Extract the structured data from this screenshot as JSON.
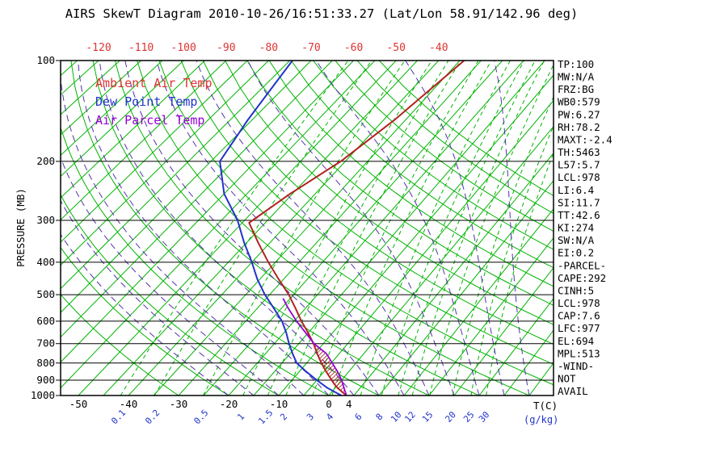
{
  "title": "AIRS SkewT Diagram 2010-10-26/16:51:33.27 (Lat/Lon 58.91/142.96 deg)",
  "legend": [
    {
      "label": "Ambient Air Temp",
      "color": "#e03333"
    },
    {
      "label": "Dew Point Temp",
      "color": "#2233cc"
    },
    {
      "label": "Air Parcel Temp",
      "color": "#9400d3"
    }
  ],
  "axes": {
    "pressure_label": "PRESSURE (MB)",
    "temp_label": "T(C)",
    "mixing_label": "(g/kg)"
  },
  "stats": [
    "TP:100",
    "MW:N/A",
    "FRZ:BG",
    "WB0:579",
    "PW:6.27",
    "RH:78.2",
    "MAXT:-2.4",
    "TH:5463",
    "L57:5.7",
    "LCL:978",
    "LI:6.4",
    "SI:11.7",
    "TT:42.6",
    "KI:274",
    "SW:N/A",
    "EI:0.2",
    "-PARCEL-",
    "CAPE:292",
    "CINH:5",
    "LCL:978",
    "CAP:7.6",
    "LFC:977",
    "EL:694",
    "MPL:513",
    "-WIND-",
    "NOT",
    "AVAIL"
  ],
  "colors": {
    "background_line_green": "#00b400",
    "moist_adiabat_violet": "#5533aa",
    "ambient_temp_red": "#b22222",
    "dew_point_blue": "#2233cc",
    "parcel_violet": "#9400d3",
    "top_axis_label_red": "#e03333",
    "axis_black": "#000000"
  },
  "chart_data": {
    "type": "line",
    "title": "AIRS SkewT Diagram 2010-10-26/16:51:33.27 (Lat/Lon 58.91/142.96 deg)",
    "x_axis": {
      "label": "T(C)",
      "top_ticks": [
        -120,
        -110,
        -100,
        -90,
        -80,
        -70,
        -60,
        -50,
        -40
      ],
      "bottom_ticks": [
        -50,
        -40,
        -30,
        -20,
        -10,
        0,
        4
      ]
    },
    "y_axis": {
      "label": "PRESSURE (MB)",
      "scale": "log",
      "range": [
        100,
        1000
      ],
      "ticks": [
        100,
        200,
        300,
        400,
        500,
        600,
        700,
        800,
        900,
        1000
      ]
    },
    "mixing_ratio_lines_gkg": [
      0.1,
      0.2,
      0.5,
      1,
      1.5,
      2,
      3,
      4,
      6,
      8,
      10,
      12,
      15,
      20,
      25,
      30
    ],
    "isotherms_c": {
      "min": -130,
      "max": 40,
      "step": 5
    },
    "dry_adiabats_c": {
      "min": -30,
      "max": 150,
      "step": 10
    },
    "moist_adiabats_c": {
      "min": -20,
      "max": 40,
      "step": 5
    },
    "series": [
      {
        "name": "Ambient Air Temp",
        "color": "#b22222",
        "points_p_t": [
          [
            1000,
            3.5
          ],
          [
            975,
            2.0
          ],
          [
            950,
            0.5
          ],
          [
            925,
            -0.8
          ],
          [
            900,
            -2.0
          ],
          [
            850,
            -4.5
          ],
          [
            800,
            -7.0
          ],
          [
            750,
            -9.5
          ],
          [
            700,
            -12.0
          ],
          [
            650,
            -15.0
          ],
          [
            600,
            -18.5
          ],
          [
            550,
            -22.0
          ],
          [
            500,
            -26.0
          ],
          [
            450,
            -31.0
          ],
          [
            400,
            -36.5
          ],
          [
            350,
            -42.5
          ],
          [
            305,
            -48.5
          ],
          [
            250,
            -45.5
          ],
          [
            200,
            -41.0
          ],
          [
            150,
            -37.5
          ],
          [
            100,
            -34.0
          ]
        ]
      },
      {
        "name": "Dew Point Temp",
        "color": "#2233cc",
        "points_p_t": [
          [
            1000,
            2.5
          ],
          [
            950,
            -1.5
          ],
          [
            900,
            -5.0
          ],
          [
            850,
            -8.5
          ],
          [
            800,
            -12.0
          ],
          [
            750,
            -14.5
          ],
          [
            700,
            -17.0
          ],
          [
            650,
            -19.5
          ],
          [
            600,
            -22.5
          ],
          [
            550,
            -26.5
          ],
          [
            500,
            -31.0
          ],
          [
            450,
            -35.5
          ],
          [
            400,
            -40.0
          ],
          [
            350,
            -45.5
          ],
          [
            300,
            -51.5
          ],
          [
            250,
            -60.0
          ],
          [
            200,
            -68.0
          ],
          [
            150,
            -71.0
          ],
          [
            100,
            -74.4
          ]
        ]
      },
      {
        "name": "Air Parcel Temp",
        "color": "#9400d3",
        "points_p_t": [
          [
            1000,
            3.5
          ],
          [
            950,
            1.8
          ],
          [
            900,
            0.0
          ],
          [
            850,
            -2.2
          ],
          [
            800,
            -4.8
          ],
          [
            750,
            -7.6
          ],
          [
            700,
            -11.9
          ],
          [
            650,
            -15.5
          ],
          [
            600,
            -19.5
          ],
          [
            550,
            -23.5
          ],
          [
            513,
            -26.5
          ]
        ]
      }
    ],
    "cape_hatch": {
      "p_bottom": 1000,
      "p_top": 694
    }
  }
}
